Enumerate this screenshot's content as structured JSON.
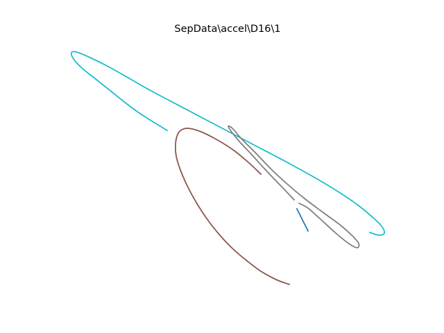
{
  "chart_data": {
    "type": "line",
    "title": "SepData\\accel\\D16\\1",
    "axes_visible": false,
    "grid": false,
    "legend": "none",
    "series": [
      {
        "color": "#17becf",
        "points": [
          [
            241,
            188
          ],
          [
            218,
            174
          ],
          [
            198,
            161
          ],
          [
            178,
            146
          ],
          [
            158,
            130
          ],
          [
            138,
            114
          ],
          [
            118,
            98
          ],
          [
            106,
            85
          ],
          [
            103,
            76
          ],
          [
            110,
            75
          ],
          [
            130,
            83
          ],
          [
            158,
            97
          ],
          [
            188,
            114
          ],
          [
            218,
            131
          ],
          [
            252,
            149
          ],
          [
            290,
            169
          ],
          [
            330,
            190
          ],
          [
            372,
            212
          ],
          [
            412,
            233
          ],
          [
            452,
            255
          ],
          [
            487,
            276
          ],
          [
            515,
            295
          ],
          [
            537,
            313
          ],
          [
            550,
            326
          ],
          [
            554,
            336
          ],
          [
            546,
            339
          ],
          [
            533,
            335
          ]
        ]
      },
      {
        "color": "#7f7f7f",
        "points": [
          [
            424,
            288
          ],
          [
            403,
            266
          ],
          [
            382,
            244
          ],
          [
            362,
            222
          ],
          [
            345,
            204
          ],
          [
            333,
            189
          ],
          [
            329,
            182
          ],
          [
            335,
            185
          ],
          [
            348,
            200
          ],
          [
            368,
            220
          ],
          [
            392,
            245
          ],
          [
            416,
            267
          ],
          [
            440,
            287
          ],
          [
            464,
            305
          ],
          [
            490,
            324
          ],
          [
            508,
            340
          ],
          [
            517,
            351
          ],
          [
            515,
            357
          ],
          [
            504,
            352
          ],
          [
            484,
            336
          ],
          [
            461,
            315
          ],
          [
            444,
            300
          ],
          [
            431,
            293
          ]
        ]
      },
      {
        "color": "#8c564b",
        "points": [
          [
            376,
            251
          ],
          [
            358,
            234
          ],
          [
            336,
            216
          ],
          [
            312,
            201
          ],
          [
            290,
            190
          ],
          [
            272,
            185
          ],
          [
            262,
            187
          ],
          [
            256,
            194
          ],
          [
            253,
            208
          ],
          [
            254,
            225
          ],
          [
            260,
            245
          ],
          [
            270,
            268
          ],
          [
            283,
            292
          ],
          [
            298,
            315
          ],
          [
            316,
            338
          ],
          [
            336,
            359
          ],
          [
            356,
            376
          ],
          [
            376,
            391
          ],
          [
            398,
            403
          ],
          [
            417,
            410
          ]
        ]
      },
      {
        "color": "#1f77b4",
        "points": [
          [
            428,
            301
          ],
          [
            434,
            313
          ],
          [
            439,
            323
          ],
          [
            444,
            333
          ]
        ]
      }
    ]
  }
}
